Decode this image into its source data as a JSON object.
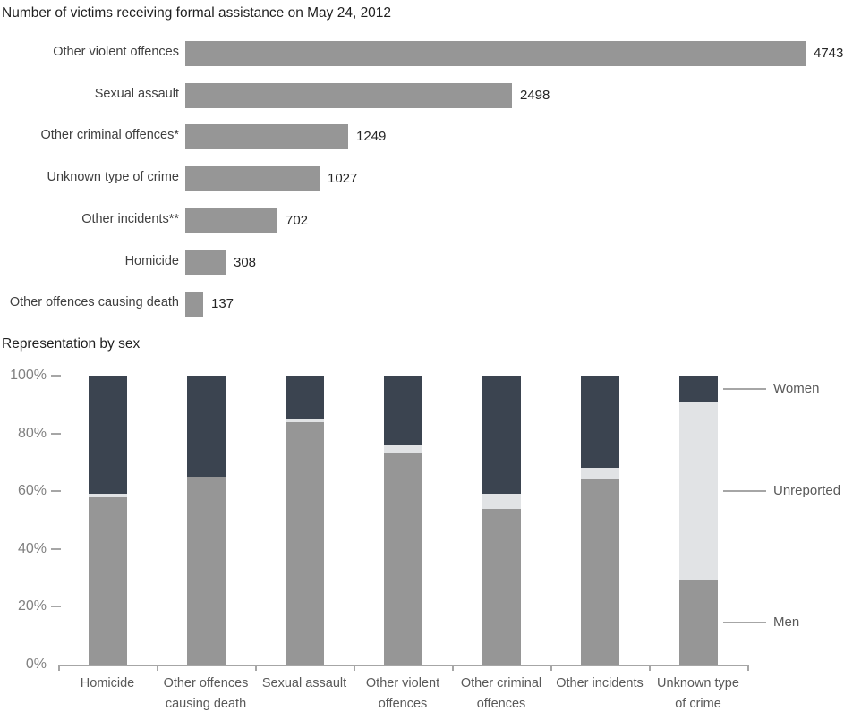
{
  "colors": {
    "bar": "#969696",
    "men": "#969696",
    "women": "#3b4450",
    "unreported": "#e1e3e5",
    "axis_line": "#a6a6a6",
    "tick_label": "#808080",
    "category_label": "#595959",
    "legend_label": "#595959",
    "hbar_label": "#3f3f3f",
    "value_label": "#262626",
    "title": "#1f1f1f"
  },
  "chart_data": [
    {
      "type": "bar",
      "orientation": "horizontal",
      "title": "Number of victims receiving formal assistance on May 24, 2012",
      "categories": [
        "Other violent offences",
        "Sexual assault",
        "Other criminal offences*",
        "Unknown type of crime",
        "Other incidents**",
        "Homicide",
        "Other offences causing death"
      ],
      "values": [
        4743,
        2498,
        1249,
        1027,
        702,
        308,
        137
      ],
      "data_labels": [
        4743,
        2498,
        1249,
        1027,
        702,
        308,
        137
      ],
      "xlim": [
        0,
        4743
      ],
      "bar_color": "#969696",
      "grid": false,
      "axes_visible": false
    },
    {
      "type": "bar",
      "stacked": true,
      "percent": true,
      "title": "Representation by sex",
      "categories": [
        "Homicide",
        "Other offences causing death",
        "Sexual assault",
        "Other violent offences",
        "Other criminal offences",
        "Other incidents",
        "Unknown type of crime"
      ],
      "series": [
        {
          "name": "Men",
          "color": "#969696",
          "values": [
            58,
            65,
            84,
            73,
            54,
            64,
            29
          ]
        },
        {
          "name": "Unreported",
          "color": "#e1e3e5",
          "values": [
            1,
            0,
            1,
            3,
            5,
            4,
            62
          ]
        },
        {
          "name": "Women",
          "color": "#3b4450",
          "values": [
            41,
            35,
            15,
            24,
            41,
            32,
            9
          ]
        }
      ],
      "ylim": [
        0,
        100
      ],
      "ytick_labels": [
        "0%",
        "20%",
        "40%",
        "60%",
        "80%",
        "100%"
      ],
      "ytick_values": [
        0,
        20,
        40,
        60,
        80,
        100
      ],
      "grid": false,
      "legend": [
        "Women",
        "Unreported",
        "Men"
      ],
      "legend_position": "right"
    }
  ]
}
